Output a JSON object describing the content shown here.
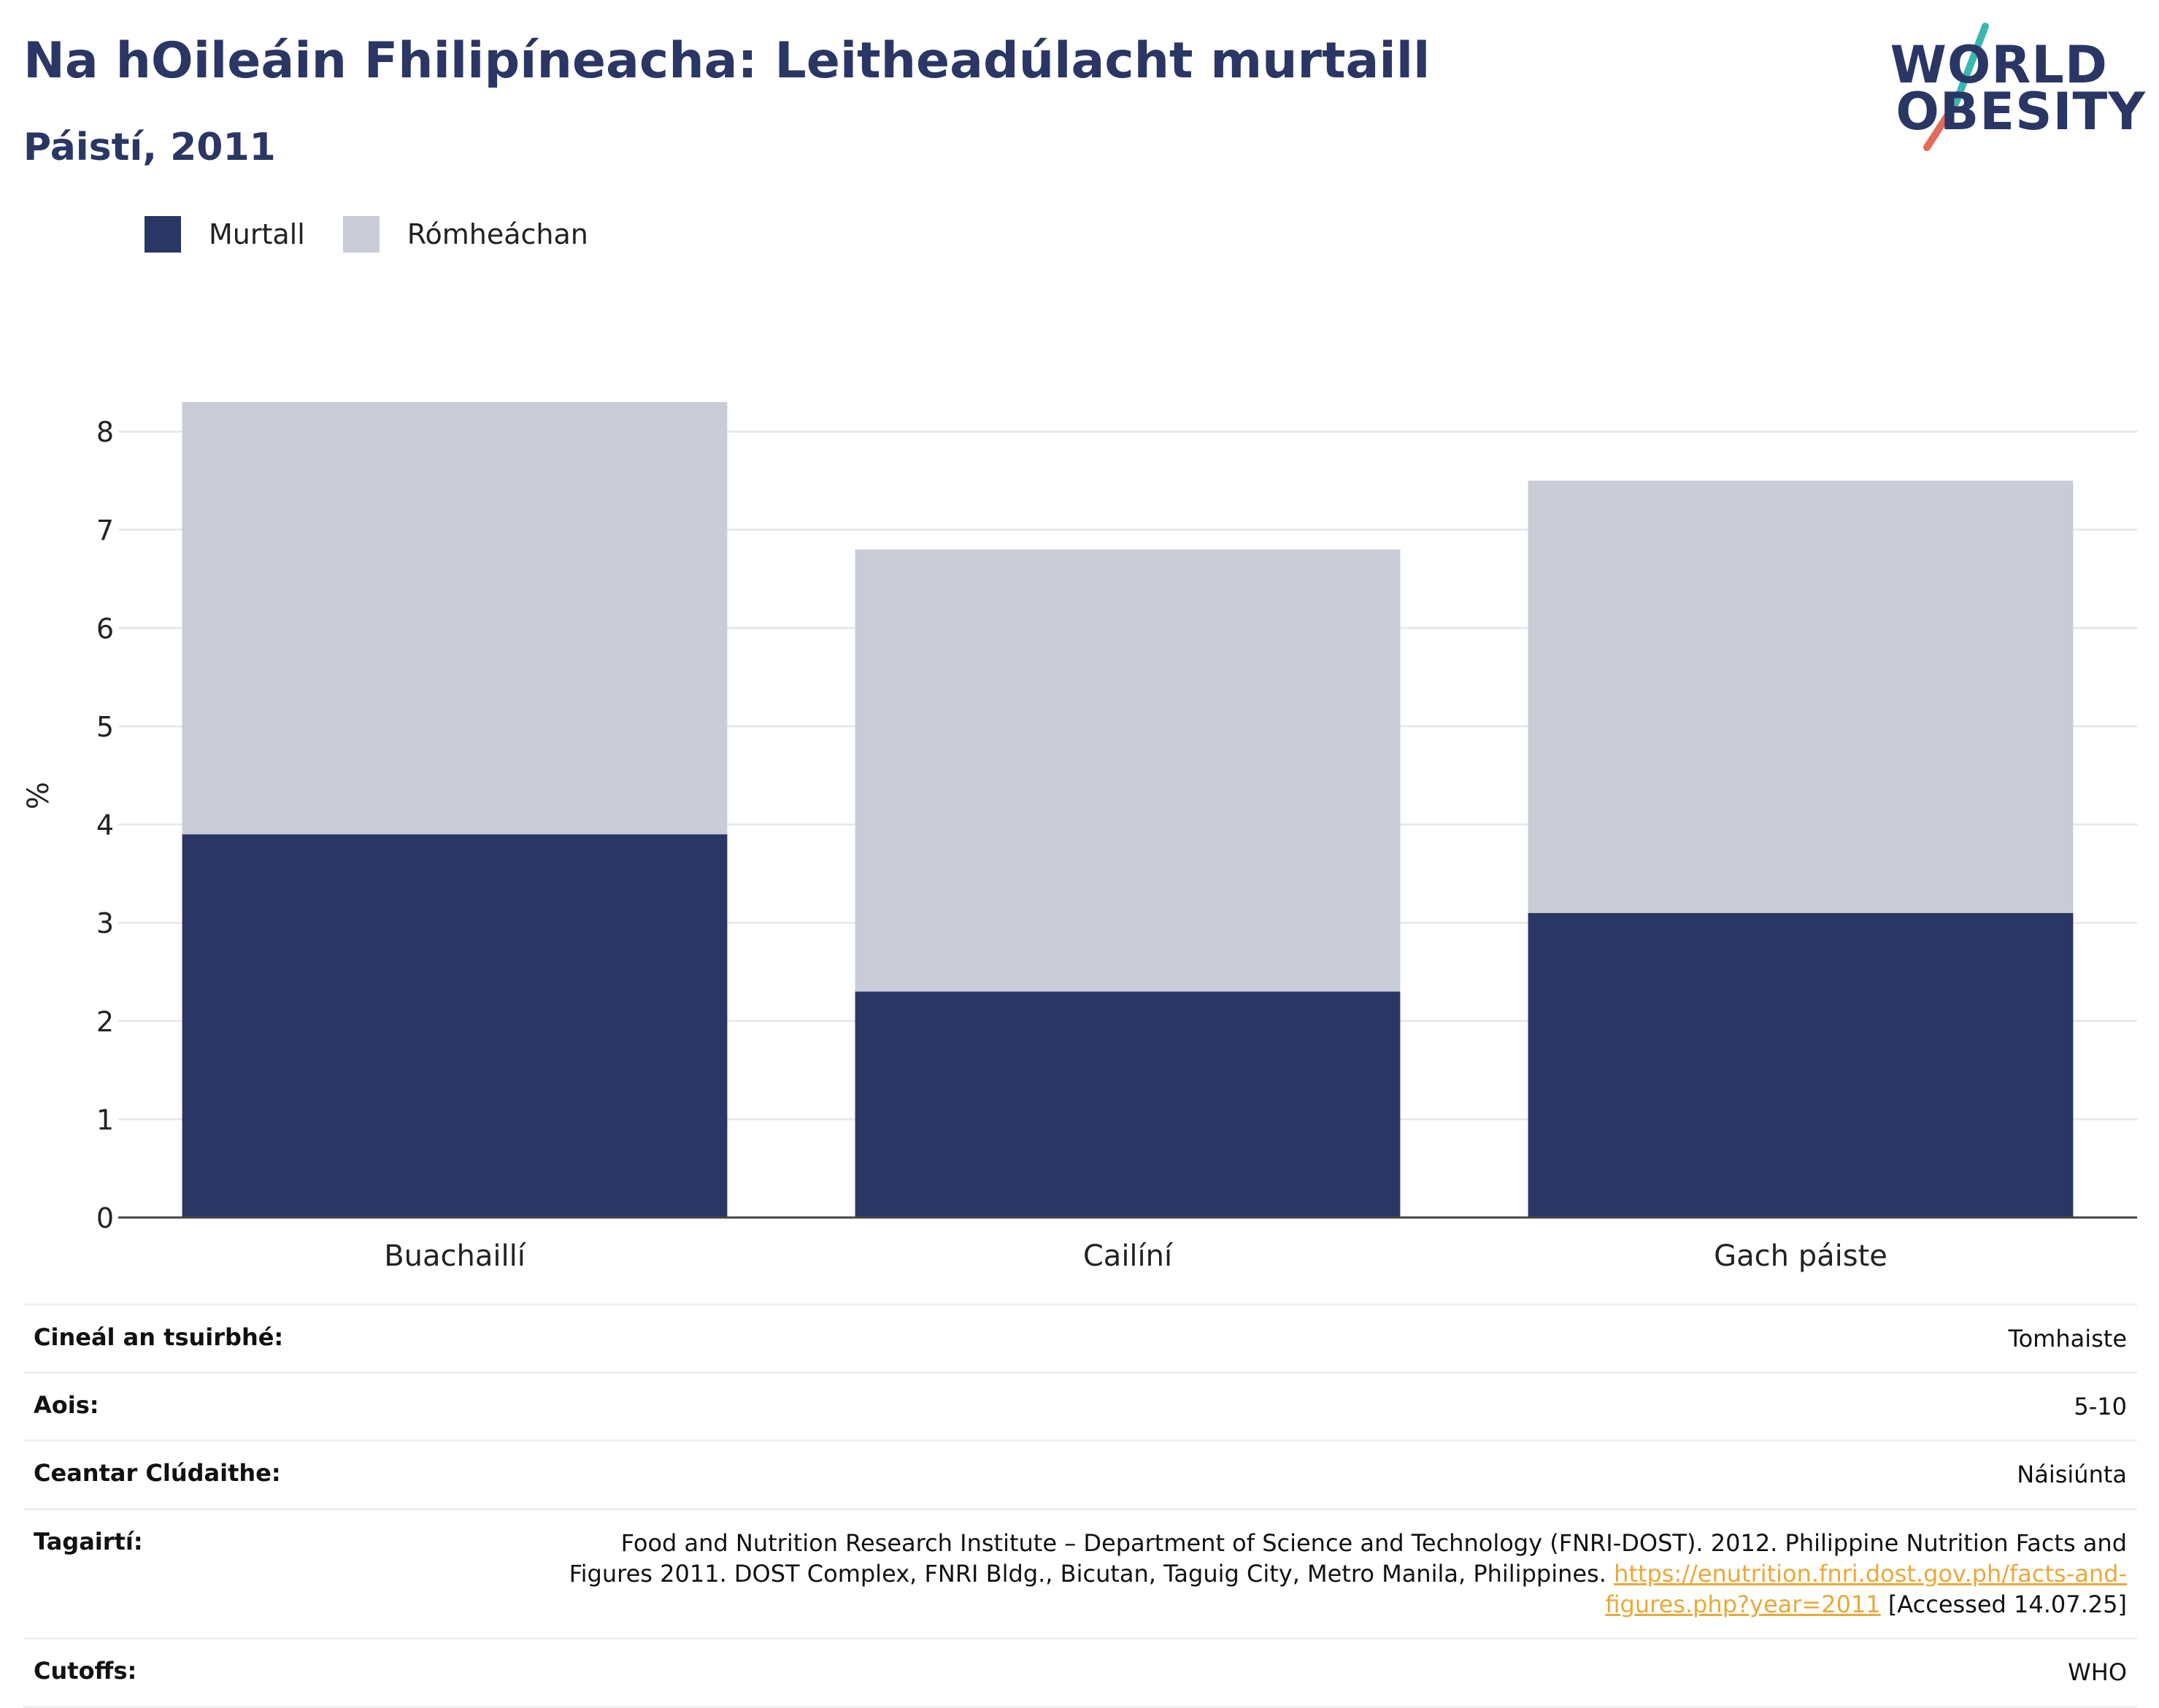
{
  "title": "Na hOileáin Fhilipíneacha: Leitheadúlacht murtaill",
  "subtitle": "Páistí, 2011",
  "logo": {
    "line1": "WORLD",
    "line2": "OBESITY"
  },
  "colors": {
    "obese": "#2a3663",
    "overweight": "#c9ccd7",
    "accent_teal": "#3ab7b0",
    "accent_coral": "#e36b5a",
    "link": "#e8a93a"
  },
  "chart_data": {
    "type": "bar",
    "stacked": true,
    "ylabel": "%",
    "ylim": [
      0,
      8.5
    ],
    "yticks": [
      0,
      1,
      2,
      3,
      4,
      5,
      6,
      7,
      8
    ],
    "grid": true,
    "legend_position": "top-left",
    "categories": [
      "Buachaillí",
      "Cailíní",
      "Gach páiste"
    ],
    "series": [
      {
        "name": "Murtall",
        "values": [
          3.9,
          2.3,
          3.1
        ]
      },
      {
        "name": "Rómheáchan",
        "values": [
          4.4,
          4.5,
          4.4
        ]
      }
    ]
  },
  "meta": [
    {
      "label": "Cineál an tsuirbhé:",
      "value": "Tomhaiste"
    },
    {
      "label": "Aois:",
      "value": "5-10"
    },
    {
      "label": "Ceantar Clúdaithe:",
      "value": "Náisiúnta"
    },
    {
      "label": "Tagairtí:",
      "value": "Food and Nutrition Research Institute – Department of Science and Technology (FNRI-DOST). 2012. Philippine Nutrition Facts and Figures 2011. DOST Complex, FNRI Bldg., Bicutan, Taguig City, Metro Manila, Philippines.",
      "link": "https://enutrition.fnri.dost.gov.ph/facts-and-figures.php?year=2011",
      "suffix": "[Accessed 14.07.25]"
    },
    {
      "label": "Cutoffs:",
      "value": "WHO"
    }
  ]
}
